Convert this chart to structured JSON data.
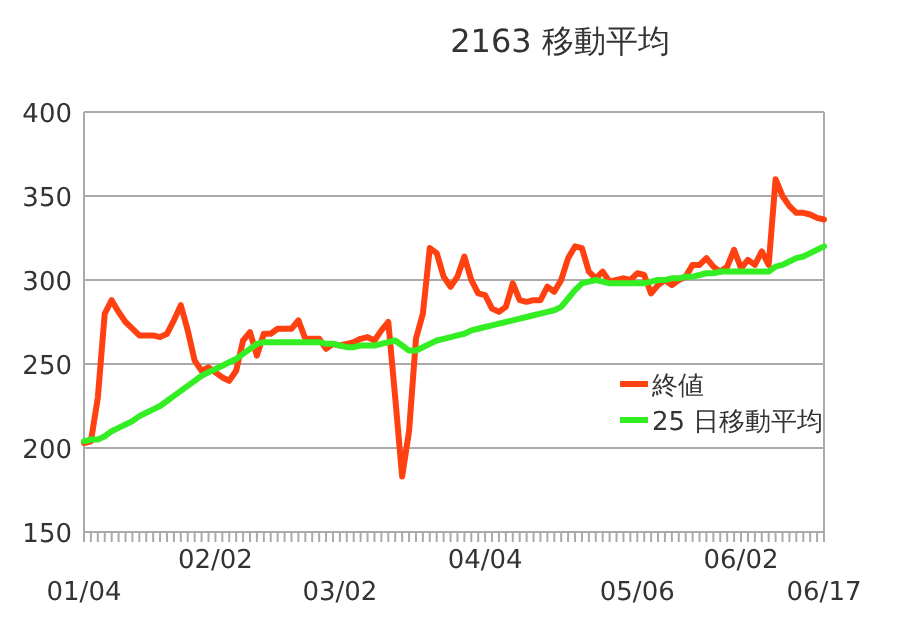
{
  "chart_data": {
    "type": "line",
    "title": "2163  移動平均",
    "categories": [
      "01/04",
      null,
      null,
      null,
      null,
      null,
      null,
      null,
      null,
      null,
      null,
      null,
      null,
      null,
      null,
      null,
      null,
      null,
      null,
      "02/02",
      null,
      null,
      null,
      null,
      null,
      null,
      null,
      null,
      null,
      null,
      null,
      null,
      null,
      null,
      null,
      null,
      null,
      "03/02",
      null,
      null,
      null,
      null,
      null,
      null,
      null,
      null,
      null,
      null,
      null,
      null,
      null,
      null,
      null,
      null,
      null,
      null,
      null,
      null,
      "04/04",
      null,
      null,
      null,
      null,
      null,
      null,
      null,
      null,
      null,
      null,
      null,
      null,
      null,
      null,
      null,
      null,
      null,
      null,
      null,
      null,
      null,
      "05/06",
      null,
      null,
      null,
      null,
      null,
      null,
      null,
      null,
      null,
      null,
      null,
      null,
      null,
      null,
      "06/02",
      null,
      null,
      null,
      null,
      null,
      null,
      null,
      null,
      null,
      null,
      null,
      "06/17"
    ],
    "series": [
      {
        "name": "終値",
        "color": "#ff4010",
        "values": [
          203,
          204,
          230,
          280,
          288,
          281,
          275,
          271,
          267,
          267,
          267,
          266,
          268,
          276,
          285,
          270,
          252,
          246,
          248,
          245,
          242,
          240,
          246,
          264,
          269,
          255,
          268,
          268,
          271,
          271,
          271,
          276,
          265,
          265,
          265,
          259,
          262,
          261,
          262,
          263,
          265,
          266,
          264,
          270,
          275,
          230,
          183,
          210,
          265,
          280,
          319,
          316,
          302,
          296,
          302,
          314,
          300,
          292,
          291,
          283,
          281,
          284,
          298,
          288,
          287,
          288,
          288,
          296,
          293,
          300,
          313,
          320,
          319,
          305,
          301,
          305,
          299,
          300,
          301,
          300,
          304,
          303,
          292,
          297,
          300,
          297,
          300,
          302,
          309,
          309,
          313,
          308,
          305,
          308,
          318,
          307,
          312,
          309,
          317,
          309,
          360,
          350,
          344,
          340,
          340,
          339,
          337,
          336
        ]
      },
      {
        "name": "25 日移動平均",
        "color": "#33ee22",
        "values": [
          204,
          205,
          205,
          207,
          210,
          212,
          214,
          216,
          219,
          221,
          223,
          225,
          228,
          231,
          234,
          237,
          240,
          243,
          245,
          247,
          249,
          251,
          253,
          256,
          259,
          262,
          263,
          263,
          263,
          263,
          263,
          263,
          263,
          263,
          263,
          262,
          262,
          261,
          260,
          260,
          261,
          261,
          261,
          262,
          263,
          264,
          261,
          258,
          258,
          260,
          262,
          264,
          265,
          266,
          267,
          268,
          270,
          271,
          272,
          273,
          274,
          275,
          276,
          277,
          278,
          279,
          280,
          281,
          282,
          284,
          289,
          294,
          298,
          299,
          300,
          299,
          298,
          298,
          298,
          298,
          298,
          298,
          299,
          300,
          300,
          301,
          301,
          302,
          302,
          303,
          304,
          304,
          305,
          305,
          305,
          305,
          305,
          305,
          305,
          305,
          308,
          309,
          311,
          313,
          314,
          316,
          318,
          320
        ]
      }
    ],
    "ylim": [
      150,
      400
    ],
    "yticks": [
      150,
      200,
      250,
      300,
      350,
      400
    ],
    "grid": "y",
    "legend": "right",
    "line_style": "solid",
    "marker": "none"
  }
}
